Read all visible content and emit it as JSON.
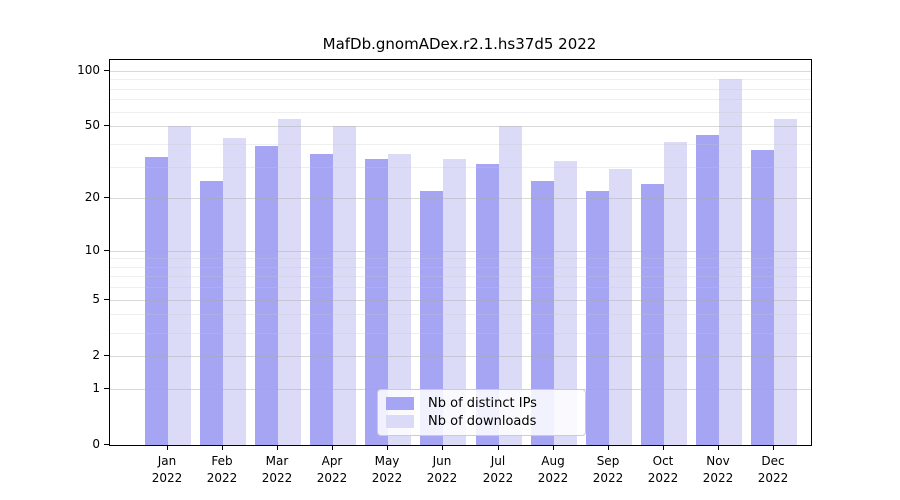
{
  "title": "MafDb.gnomADex.r2.1.hs37d5 2022",
  "colors": {
    "distinct_ips": "#a5a5f3",
    "downloads": "#dbdbf8",
    "grid_major": "#d9d9d9",
    "grid_minor": "#ebebeb",
    "axis": "#000000"
  },
  "legend": {
    "entries": [
      {
        "label": "Nb of distinct IPs",
        "color": "#a5a5f3"
      },
      {
        "label": "Nb of downloads",
        "color": "#dbdbf8"
      }
    ]
  },
  "y_axis": {
    "tick_labels": [
      "0",
      "1",
      "2",
      "5",
      "10",
      "20",
      "50",
      "100"
    ]
  },
  "x_axis": {
    "months": [
      "Jan",
      "Feb",
      "Mar",
      "Apr",
      "May",
      "Jun",
      "Jul",
      "Aug",
      "Sep",
      "Oct",
      "Nov",
      "Dec"
    ],
    "year": "2022"
  },
  "chart_data": {
    "type": "bar",
    "title": "MafDb.gnomADex.r2.1.hs37d5 2022",
    "categories": [
      "Jan 2022",
      "Feb 2022",
      "Mar 2022",
      "Apr 2022",
      "May 2022",
      "Jun 2022",
      "Jul 2022",
      "Aug 2022",
      "Sep 2022",
      "Oct 2022",
      "Nov 2022",
      "Dec 2022"
    ],
    "series": [
      {
        "name": "Nb of distinct IPs",
        "color": "#a5a5f3",
        "values": [
          34,
          25,
          39,
          35,
          33,
          22,
          31,
          25,
          22,
          24,
          45,
          37
        ]
      },
      {
        "name": "Nb of downloads",
        "color": "#dbdbf8",
        "values": [
          50,
          43,
          55,
          50,
          35,
          33,
          50,
          32,
          29,
          41,
          90,
          55
        ]
      }
    ],
    "xlabel": "",
    "ylabel": "",
    "yscale": "log1p",
    "ylim": [
      0,
      114
    ],
    "yticks": [
      0,
      1,
      2,
      5,
      10,
      20,
      50,
      100
    ],
    "minor_gridlines": [
      3,
      4,
      6,
      7,
      8,
      9,
      30,
      40,
      60,
      70,
      80,
      90
    ],
    "grid": true,
    "legend_position": "lower center"
  }
}
